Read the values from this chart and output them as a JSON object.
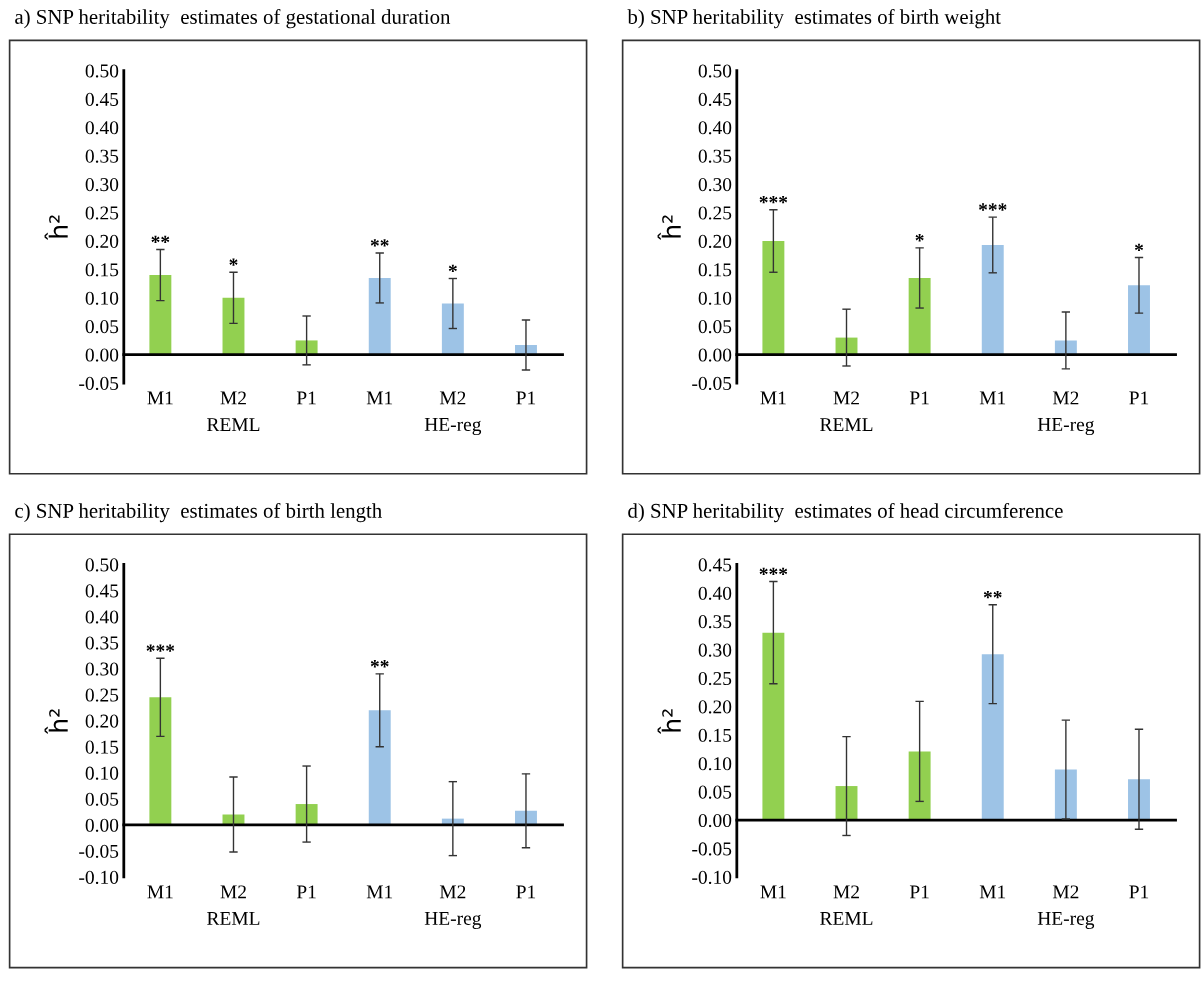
{
  "chart_data": [
    {
      "type": "bar",
      "title": "a) SNP heritability  estimates of gestational duration",
      "ylabel": "ĥ²",
      "categories": [
        "M1",
        "M2",
        "P1",
        "M1",
        "M2",
        "P1"
      ],
      "series": [
        {
          "color": "#92d050",
          "values": [
            0.14,
            0.1,
            0.025,
            null,
            null,
            null
          ],
          "errors": [
            0.045,
            0.045,
            0.043,
            null,
            null,
            null
          ],
          "value_labels": [
            "**",
            "*",
            null,
            null,
            null,
            null
          ]
        },
        {
          "color": "#9dc3e6",
          "values": [
            null,
            null,
            null,
            0.135,
            0.09,
            0.017
          ],
          "errors": [
            null,
            null,
            null,
            0.044,
            0.044,
            0.044
          ],
          "value_labels": [
            null,
            null,
            null,
            "**",
            "*",
            null
          ]
        }
      ],
      "annotations": [
        "REML",
        "HE-reg"
      ],
      "ylim": [
        -0.05,
        0.5
      ],
      "yticks": [
        {
          "value": -0.05,
          "label": "-0.05"
        },
        {
          "value": 0,
          "label": "0.00"
        },
        {
          "value": 0.05,
          "label": "0.05"
        },
        {
          "value": 0.1,
          "label": "0.10"
        },
        {
          "value": 0.15,
          "label": "0.15"
        },
        {
          "value": 0.2,
          "label": "0.20"
        },
        {
          "value": 0.25,
          "label": "0.25"
        },
        {
          "value": 0.3,
          "label": "0.30"
        },
        {
          "value": 0.35,
          "label": "0.35"
        },
        {
          "value": 0.4,
          "label": "0.40"
        },
        {
          "value": 0.45,
          "label": "0.45"
        },
        {
          "value": 0.5,
          "label": "0.50"
        }
      ],
      "grid": false,
      "legend": false
    },
    {
      "type": "bar",
      "title": "b) SNP heritability  estimates of birth weight",
      "ylabel": "ĥ²",
      "categories": [
        "M1",
        "M2",
        "P1",
        "M1",
        "M2",
        "P1"
      ],
      "series": [
        {
          "color": "#92d050",
          "values": [
            0.2,
            0.03,
            0.135,
            null,
            null,
            null
          ],
          "errors": [
            0.055,
            0.05,
            0.053,
            null,
            null,
            null
          ],
          "value_labels": [
            "***",
            null,
            "*",
            null,
            null,
            null
          ]
        },
        {
          "color": "#9dc3e6",
          "values": [
            null,
            null,
            null,
            0.193,
            0.025,
            0.122
          ],
          "errors": [
            null,
            null,
            null,
            0.049,
            0.05,
            0.049
          ],
          "value_labels": [
            null,
            null,
            null,
            "***",
            null,
            "*"
          ]
        }
      ],
      "annotations": [
        "REML",
        "HE-reg"
      ],
      "ylim": [
        -0.05,
        0.5
      ],
      "yticks": [
        {
          "value": -0.05,
          "label": "-0.05"
        },
        {
          "value": 0,
          "label": "0.00"
        },
        {
          "value": 0.05,
          "label": "0.05"
        },
        {
          "value": 0.1,
          "label": "0.10"
        },
        {
          "value": 0.15,
          "label": "0.15"
        },
        {
          "value": 0.2,
          "label": "0.20"
        },
        {
          "value": 0.25,
          "label": "0.25"
        },
        {
          "value": 0.3,
          "label": "0.30"
        },
        {
          "value": 0.35,
          "label": "0.35"
        },
        {
          "value": 0.4,
          "label": "0.40"
        },
        {
          "value": 0.45,
          "label": "0.45"
        },
        {
          "value": 0.5,
          "label": "0.50"
        }
      ],
      "grid": false,
      "legend": false
    },
    {
      "type": "bar",
      "title": "c) SNP heritability  estimates of birth length",
      "ylabel": "ĥ²",
      "categories": [
        "M1",
        "M2",
        "P1",
        "M1",
        "M2",
        "P1"
      ],
      "series": [
        {
          "color": "#92d050",
          "values": [
            0.245,
            0.02,
            0.04,
            null,
            null,
            null
          ],
          "errors": [
            0.075,
            0.072,
            0.073,
            null,
            null,
            null
          ],
          "value_labels": [
            "***",
            null,
            null,
            null,
            null,
            null
          ]
        },
        {
          "color": "#9dc3e6",
          "values": [
            null,
            null,
            null,
            0.22,
            0.012,
            0.027
          ],
          "errors": [
            null,
            null,
            null,
            0.07,
            0.071,
            0.071
          ],
          "value_labels": [
            null,
            null,
            null,
            "**",
            null,
            null
          ]
        }
      ],
      "annotations": [
        "REML",
        "HE-reg"
      ],
      "ylim": [
        -0.1,
        0.5
      ],
      "yticks": [
        {
          "value": -0.1,
          "label": "-0.10"
        },
        {
          "value": -0.05,
          "label": "-0.05"
        },
        {
          "value": 0,
          "label": "0.00"
        },
        {
          "value": 0.05,
          "label": "0.05"
        },
        {
          "value": 0.1,
          "label": "0.10"
        },
        {
          "value": 0.15,
          "label": "0.15"
        },
        {
          "value": 0.2,
          "label": "0.20"
        },
        {
          "value": 0.25,
          "label": "0.25"
        },
        {
          "value": 0.3,
          "label": "0.30"
        },
        {
          "value": 0.35,
          "label": "0.35"
        },
        {
          "value": 0.4,
          "label": "0.40"
        },
        {
          "value": 0.45,
          "label": "0.45"
        },
        {
          "value": 0.5,
          "label": "0.50"
        }
      ],
      "legend": false
    },
    {
      "type": "bar",
      "title": "d) SNP heritability  estimates of head circumference",
      "ylabel": "ĥ²",
      "categories": [
        "M1",
        "M2",
        "P1",
        "M1",
        "M2",
        "P1"
      ],
      "series": [
        {
          "color": "#92d050",
          "values": [
            0.33,
            0.06,
            0.121,
            null,
            null,
            null
          ],
          "errors": [
            0.09,
            0.087,
            0.088,
            null,
            null,
            null
          ],
          "value_labels": [
            "***",
            null,
            null,
            null,
            null,
            null
          ]
        },
        {
          "color": "#9dc3e6",
          "values": [
            null,
            null,
            null,
            0.292,
            0.089,
            0.072
          ],
          "errors": [
            null,
            null,
            null,
            0.087,
            0.087,
            0.088
          ],
          "value_labels": [
            null,
            null,
            null,
            "**",
            null,
            null
          ]
        }
      ],
      "annotations": [
        "REML",
        "HE-reg"
      ],
      "ylim": [
        -0.1,
        0.45
      ],
      "yticks": [
        {
          "value": -0.1,
          "label": "-0.10"
        },
        {
          "value": -0.05,
          "label": "-0.05"
        },
        {
          "value": 0,
          "label": "0.00"
        },
        {
          "value": 0.05,
          "label": "0.05"
        },
        {
          "value": 0.1,
          "label": "0.10"
        },
        {
          "value": 0.15,
          "label": "0.15"
        },
        {
          "value": 0.2,
          "label": "0.20"
        },
        {
          "value": 0.25,
          "label": "0.25"
        },
        {
          "value": 0.3,
          "label": "0.30"
        },
        {
          "value": 0.35,
          "label": "0.35"
        },
        {
          "value": 0.4,
          "label": "0.40"
        },
        {
          "value": 0.45,
          "label": "0.45"
        }
      ],
      "legend": false
    }
  ]
}
